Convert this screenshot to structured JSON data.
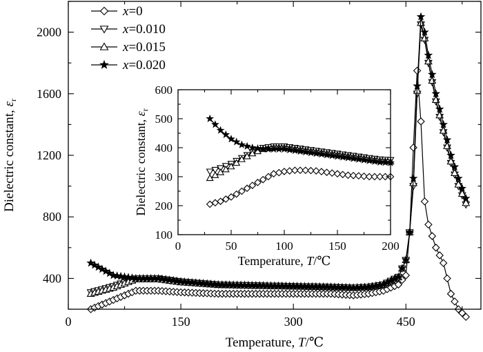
{
  "chart_data": [
    {
      "type": "line",
      "role": "main",
      "xlabel_prefix": "Temperature, ",
      "xlabel_symbol": "T",
      "xlabel_unit": "/℃",
      "ylabel_prefix": "Dielectric constant, ",
      "ylabel_symbol": "ε",
      "ylabel_sub": "r",
      "xlim": [
        0,
        550
      ],
      "ylim": [
        200,
        2200
      ],
      "xticks": [
        0,
        150,
        300,
        450
      ],
      "yticks": [
        400,
        800,
        1200,
        1600,
        2000
      ],
      "legend": "top-left",
      "series": [
        {
          "name_var": "x",
          "name_val": "=0",
          "marker": "diamond",
          "x": [
            30,
            60,
            90,
            120,
            150,
            200,
            250,
            300,
            350,
            380,
            400,
            420,
            440,
            450,
            455,
            460,
            465,
            470,
            475,
            480,
            490,
            500,
            510,
            520,
            530
          ],
          "y": [
            200,
            260,
            320,
            320,
            310,
            300,
            300,
            300,
            300,
            290,
            300,
            320,
            360,
            420,
            700,
            1250,
            1750,
            1420,
            900,
            750,
            600,
            500,
            300,
            200,
            150
          ]
        },
        {
          "name_var": "x",
          "name_val": "=0.010",
          "marker": "triangle-down",
          "x": [
            30,
            60,
            90,
            120,
            150,
            200,
            250,
            300,
            350,
            380,
            400,
            420,
            440,
            450,
            455,
            460,
            465,
            470,
            475,
            480,
            490,
            500,
            510,
            520,
            530
          ],
          "y": [
            310,
            350,
            400,
            400,
            380,
            360,
            355,
            350,
            345,
            340,
            345,
            360,
            410,
            520,
            700,
            1000,
            1600,
            2050,
            1950,
            1800,
            1550,
            1350,
            1150,
            1000,
            880
          ]
        },
        {
          "name_var": "x",
          "name_val": "=0.015",
          "marker": "triangle-up",
          "x": [
            30,
            60,
            90,
            120,
            150,
            200,
            250,
            300,
            350,
            380,
            400,
            420,
            440,
            450,
            455,
            460,
            465,
            470,
            475,
            480,
            490,
            500,
            510,
            520,
            530
          ],
          "y": [
            300,
            340,
            395,
            395,
            375,
            358,
            352,
            348,
            343,
            338,
            343,
            358,
            408,
            520,
            700,
            1020,
            1620,
            2060,
            1960,
            1810,
            1560,
            1360,
            1160,
            1010,
            890
          ]
        },
        {
          "name_var": "x",
          "name_val": "=0.020",
          "marker": "star",
          "x": [
            30,
            60,
            90,
            120,
            150,
            200,
            250,
            300,
            350,
            380,
            400,
            420,
            440,
            450,
            455,
            460,
            465,
            470,
            475,
            480,
            490,
            500,
            510,
            520,
            530
          ],
          "y": [
            500,
            420,
            400,
            400,
            380,
            360,
            355,
            350,
            345,
            340,
            345,
            360,
            410,
            520,
            700,
            1050,
            1650,
            2100,
            2000,
            1850,
            1600,
            1400,
            1200,
            1050,
            920
          ]
        }
      ]
    },
    {
      "type": "line",
      "role": "inset",
      "xlabel_prefix": "Temperature, ",
      "xlabel_symbol": "T",
      "xlabel_unit": "/℃",
      "ylabel_prefix": "Dielectric constant, ",
      "ylabel_symbol": "ε",
      "ylabel_sub": "r",
      "xlim": [
        0,
        200
      ],
      "ylim": [
        100,
        600
      ],
      "xticks": [
        0,
        50,
        100,
        150,
        200
      ],
      "yticks": [
        100,
        200,
        300,
        400,
        500,
        600
      ],
      "series": [
        {
          "marker": "diamond",
          "x": [
            30,
            40,
            50,
            60,
            70,
            80,
            90,
            100,
            110,
            120,
            130,
            140,
            150,
            160,
            170,
            180,
            190,
            200
          ],
          "y": [
            205,
            215,
            230,
            250,
            270,
            290,
            310,
            318,
            322,
            322,
            320,
            315,
            310,
            305,
            303,
            300,
            300,
            300
          ]
        },
        {
          "marker": "triangle-down",
          "x": [
            30,
            40,
            50,
            60,
            70,
            80,
            90,
            100,
            110,
            120,
            130,
            140,
            150,
            160,
            170,
            180,
            190,
            200
          ],
          "y": [
            318,
            330,
            345,
            365,
            385,
            400,
            405,
            405,
            400,
            395,
            390,
            385,
            380,
            375,
            370,
            365,
            360,
            358
          ]
        },
        {
          "marker": "triangle-up",
          "x": [
            30,
            40,
            50,
            60,
            70,
            80,
            90,
            100,
            110,
            120,
            130,
            140,
            150,
            160,
            170,
            180,
            190,
            200
          ],
          "y": [
            295,
            315,
            335,
            360,
            380,
            395,
            400,
            400,
            395,
            390,
            385,
            380,
            375,
            370,
            365,
            360,
            355,
            352
          ]
        },
        {
          "marker": "star",
          "x": [
            30,
            40,
            50,
            60,
            70,
            80,
            90,
            100,
            110,
            120,
            130,
            140,
            150,
            160,
            170,
            180,
            190,
            200
          ],
          "y": [
            500,
            460,
            430,
            410,
            400,
            395,
            395,
            395,
            390,
            385,
            380,
            375,
            370,
            365,
            360,
            355,
            350,
            348
          ]
        }
      ]
    }
  ]
}
